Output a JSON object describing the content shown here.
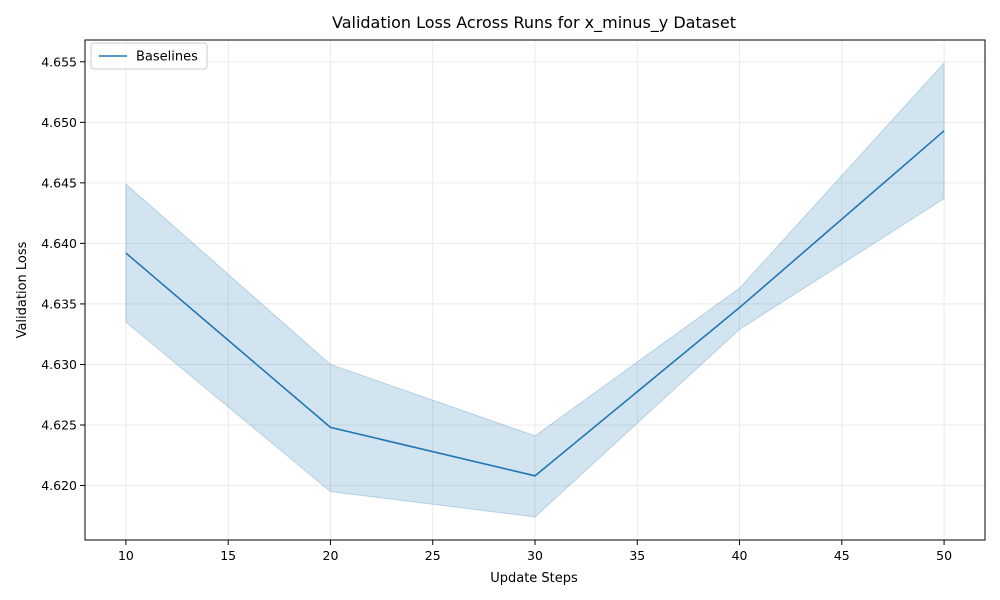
{
  "chart_data": {
    "type": "line",
    "title": "Validation Loss Across Runs for x_minus_y Dataset",
    "xlabel": "Update Steps",
    "ylabel": "Validation Loss",
    "x": [
      10,
      20,
      30,
      40,
      50
    ],
    "series": [
      {
        "name": "Baselines",
        "values": [
          4.6392,
          4.6248,
          4.6208,
          4.6347,
          4.6493
        ],
        "band_upper": [
          4.6449,
          4.63,
          4.6241,
          4.6363,
          4.6549
        ],
        "band_lower": [
          4.6335,
          4.6195,
          4.6174,
          4.6329,
          4.6437
        ],
        "color": "#1f77b4"
      }
    ],
    "xlim": [
      8,
      52
    ],
    "ylim": [
      4.6155,
      4.6568
    ],
    "xticks": [
      10,
      15,
      20,
      25,
      30,
      35,
      40,
      45,
      50
    ],
    "yticks": [
      4.62,
      4.625,
      4.63,
      4.635,
      4.64,
      4.645,
      4.65,
      4.655
    ],
    "ytick_labels": [
      "4.620",
      "4.625",
      "4.630",
      "4.635",
      "4.640",
      "4.645",
      "4.650",
      "4.655"
    ],
    "grid": true,
    "legend_position": "top-left"
  }
}
